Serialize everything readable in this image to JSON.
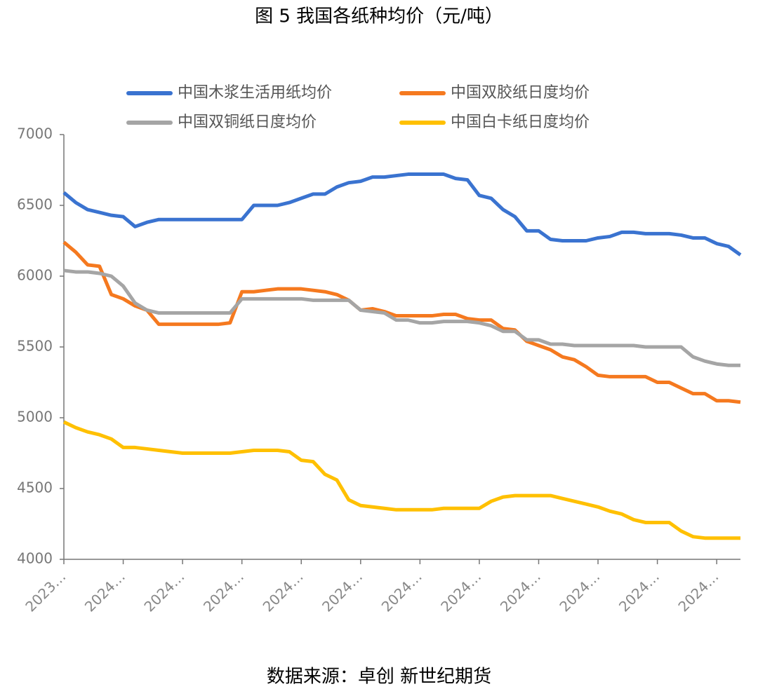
{
  "chart_data": {
    "type": "line",
    "title": "图 5  我国各纸种均价（元/吨）",
    "source": "数据来源：卓创  新世纪期货",
    "categories": [
      "2023…",
      null,
      null,
      null,
      null,
      "2024…",
      null,
      null,
      null,
      null,
      "2024…",
      null,
      null,
      null,
      null,
      "2024…",
      null,
      null,
      null,
      null,
      "2024…",
      null,
      null,
      null,
      null,
      "2024…",
      null,
      null,
      null,
      null,
      "2024…",
      null,
      null,
      null,
      null,
      "2024…",
      null,
      null,
      null,
      null,
      "2024…",
      null,
      null,
      null,
      null,
      "2024…",
      null,
      null,
      null,
      null,
      "2024…",
      null,
      null,
      null,
      null,
      "2024…",
      null,
      null
    ],
    "series": [
      {
        "name": "中国木浆生活用纸均价",
        "color": "#3a73d0",
        "values": [
          6590,
          6520,
          6470,
          6450,
          6430,
          6420,
          6350,
          6380,
          6400,
          6400,
          6400,
          6400,
          6400,
          6400,
          6400,
          6400,
          6500,
          6500,
          6500,
          6520,
          6550,
          6580,
          6580,
          6630,
          6660,
          6670,
          6700,
          6700,
          6710,
          6720,
          6720,
          6720,
          6720,
          6690,
          6680,
          6570,
          6550,
          6470,
          6420,
          6320,
          6320,
          6260,
          6250,
          6250,
          6250,
          6270,
          6280,
          6310,
          6310,
          6300,
          6300,
          6300,
          6290,
          6270,
          6270,
          6230,
          6210,
          6150
        ]
      },
      {
        "name": "中国双胶纸日度均价",
        "color": "#f5791f",
        "values": [
          6240,
          6170,
          6080,
          6070,
          5870,
          5840,
          5790,
          5760,
          5660,
          5660,
          5660,
          5660,
          5660,
          5660,
          5670,
          5890,
          5890,
          5900,
          5910,
          5910,
          5910,
          5900,
          5890,
          5870,
          5830,
          5760,
          5770,
          5750,
          5720,
          5720,
          5720,
          5720,
          5730,
          5730,
          5700,
          5690,
          5690,
          5630,
          5620,
          5540,
          5510,
          5480,
          5430,
          5410,
          5360,
          5300,
          5290,
          5290,
          5290,
          5290,
          5250,
          5250,
          5210,
          5170,
          5170,
          5120,
          5120,
          5110
        ]
      },
      {
        "name": "中国双铜纸日度均价",
        "color": "#a5a5a5",
        "values": [
          6040,
          6030,
          6030,
          6020,
          6000,
          5930,
          5810,
          5760,
          5740,
          5740,
          5740,
          5740,
          5740,
          5740,
          5740,
          5840,
          5840,
          5840,
          5840,
          5840,
          5840,
          5830,
          5830,
          5830,
          5830,
          5760,
          5750,
          5740,
          5690,
          5690,
          5670,
          5670,
          5680,
          5680,
          5680,
          5670,
          5650,
          5610,
          5610,
          5550,
          5550,
          5520,
          5520,
          5510,
          5510,
          5510,
          5510,
          5510,
          5510,
          5500,
          5500,
          5500,
          5500,
          5430,
          5400,
          5380,
          5370,
          5370
        ]
      },
      {
        "name": "中国白卡纸日度均价",
        "color": "#ffc000",
        "values": [
          4970,
          4930,
          4900,
          4880,
          4850,
          4790,
          4790,
          4780,
          4770,
          4760,
          4750,
          4750,
          4750,
          4750,
          4750,
          4760,
          4770,
          4770,
          4770,
          4760,
          4700,
          4690,
          4600,
          4560,
          4420,
          4380,
          4370,
          4360,
          4350,
          4350,
          4350,
          4350,
          4360,
          4360,
          4360,
          4360,
          4410,
          4440,
          4450,
          4450,
          4450,
          4450,
          4430,
          4410,
          4390,
          4370,
          4340,
          4320,
          4280,
          4260,
          4260,
          4260,
          4200,
          4160,
          4150,
          4150,
          4150,
          4150
        ]
      }
    ],
    "ylim": [
      4000,
      7000
    ],
    "yticks": [
      4000,
      4500,
      5000,
      5500,
      6000,
      6500,
      7000
    ],
    "grid": false
  }
}
